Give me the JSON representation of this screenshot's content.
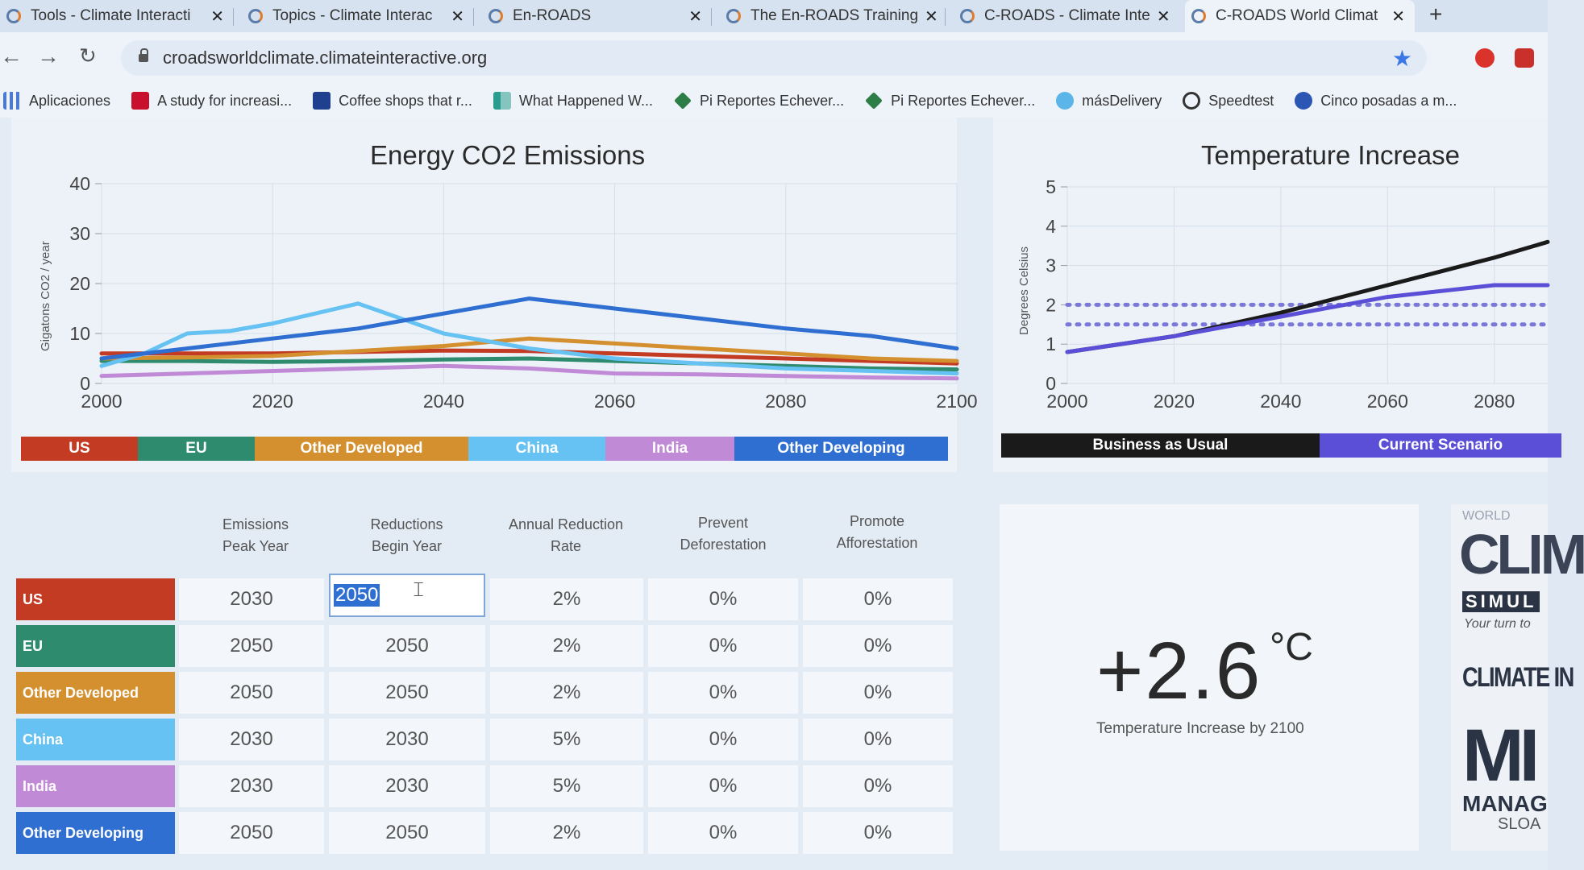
{
  "tabs": [
    {
      "label": "Tools - Climate Interacti",
      "active": false
    },
    {
      "label": "Topics - Climate Interac",
      "active": false
    },
    {
      "label": "En-ROADS",
      "active": false
    },
    {
      "label": "The En-ROADS Training",
      "active": false
    },
    {
      "label": "C-ROADS - Climate Inte",
      "active": false
    },
    {
      "label": "C-ROADS World Climat",
      "active": true
    }
  ],
  "address": {
    "url": "croadsworldclimate.climateinteractive.org"
  },
  "bookmarks": [
    {
      "label": "Aplicaciones",
      "icon": "apps-grid-icon"
    },
    {
      "label": "A study for increasi...",
      "icon": "isu-icon"
    },
    {
      "label": "Coffee shops that r...",
      "icon": "j-icon"
    },
    {
      "label": "What Happened W...",
      "icon": "chart-icon"
    },
    {
      "label": "Pi Reportes Echever...",
      "icon": "diamond-icon"
    },
    {
      "label": "Pi Reportes Echever...",
      "icon": "diamond-icon"
    },
    {
      "label": "másDelivery",
      "icon": "cloud-icon"
    },
    {
      "label": "Speedtest",
      "icon": "speedometer-icon"
    },
    {
      "label": "Cinco posadas a m...",
      "icon": "globe-icon"
    }
  ],
  "colors": {
    "us": "#c23b22",
    "eu": "#2e8b6e",
    "other_developed": "#d4902e",
    "china": "#66c2f2",
    "india": "#c08ad6",
    "other_developing": "#2f6fd1",
    "business_as_usual": "#1a1a1a",
    "current_scenario": "#5a4fd6"
  },
  "emissions_chart": {
    "title": "Energy CO2 Emissions",
    "ylabel": "Gigatons CO2 / year",
    "legend": [
      "US",
      "EU",
      "Other Developed",
      "China",
      "India",
      "Other Developing"
    ]
  },
  "temperature_chart": {
    "title": "Temperature Increase",
    "ylabel": "Degrees Celsius",
    "legend": [
      "Business as Usual",
      "Current Scenario"
    ]
  },
  "chart_data": [
    {
      "type": "line",
      "title": "Energy CO2 Emissions",
      "ylabel": "Gigatons CO2 / year",
      "xlabel": "",
      "xlim": [
        2000,
        2100
      ],
      "ylim": [
        0,
        40
      ],
      "xticks": [
        2000,
        2020,
        2040,
        2060,
        2080,
        2100
      ],
      "yticks": [
        0,
        10,
        20,
        30,
        40
      ],
      "grid": true,
      "legend": "bottom",
      "series": [
        {
          "name": "US",
          "color": "#c23b22",
          "x": [
            2000,
            2010,
            2020,
            2030,
            2040,
            2050,
            2060,
            2070,
            2080,
            2090,
            2100
          ],
          "y": [
            6,
            6,
            6,
            6.3,
            6.6,
            6.5,
            6,
            5.5,
            5,
            4.5,
            4
          ]
        },
        {
          "name": "EU",
          "color": "#2e8b6e",
          "x": [
            2000,
            2010,
            2020,
            2030,
            2040,
            2050,
            2060,
            2070,
            2080,
            2090,
            2100
          ],
          "y": [
            4.5,
            4.5,
            4.3,
            4.5,
            4.8,
            5,
            4.5,
            4,
            3.5,
            3,
            2.8
          ]
        },
        {
          "name": "Other Developed",
          "color": "#d4902e",
          "x": [
            2000,
            2010,
            2020,
            2030,
            2040,
            2050,
            2060,
            2070,
            2080,
            2090,
            2100
          ],
          "y": [
            5,
            5.2,
            5.5,
            6.5,
            7.5,
            9,
            8,
            7,
            6,
            5,
            4.5
          ]
        },
        {
          "name": "China",
          "color": "#66c2f2",
          "x": [
            2000,
            2005,
            2010,
            2015,
            2020,
            2030,
            2035,
            2040,
            2050,
            2060,
            2070,
            2080,
            2090,
            2100
          ],
          "y": [
            3.5,
            6,
            10,
            10.5,
            12,
            16,
            13,
            10,
            7,
            5,
            4,
            3,
            2.5,
            2
          ]
        },
        {
          "name": "India",
          "color": "#c08ad6",
          "x": [
            2000,
            2010,
            2020,
            2030,
            2040,
            2050,
            2060,
            2070,
            2080,
            2090,
            2100
          ],
          "y": [
            1.5,
            2,
            2.5,
            3,
            3.5,
            3,
            2,
            1.8,
            1.5,
            1.2,
            1
          ]
        },
        {
          "name": "Other Developing",
          "color": "#2f6fd1",
          "x": [
            2000,
            2010,
            2020,
            2030,
            2040,
            2050,
            2060,
            2070,
            2080,
            2090,
            2100
          ],
          "y": [
            5,
            7,
            9,
            11,
            14,
            17,
            15,
            13,
            11,
            9.5,
            7
          ]
        }
      ]
    },
    {
      "type": "line",
      "title": "Temperature Increase",
      "ylabel": "Degrees Celsius",
      "xlabel": "",
      "xlim": [
        2000,
        2090
      ],
      "ylim": [
        0,
        5
      ],
      "xticks": [
        2000,
        2020,
        2040,
        2060,
        2080
      ],
      "yticks": [
        0,
        1,
        2,
        3,
        4,
        5
      ],
      "grid": true,
      "legend": "bottom",
      "reference_lines": [
        2,
        1.5
      ],
      "series": [
        {
          "name": "Business as Usual",
          "color": "#1a1a1a",
          "x": [
            2000,
            2020,
            2040,
            2060,
            2080,
            2090
          ],
          "y": [
            0.8,
            1.2,
            1.8,
            2.5,
            3.2,
            3.6
          ]
        },
        {
          "name": "Current Scenario",
          "color": "#5a4fd6",
          "x": [
            2000,
            2020,
            2040,
            2060,
            2080,
            2090
          ],
          "y": [
            0.8,
            1.2,
            1.7,
            2.2,
            2.5,
            2.5
          ]
        }
      ]
    }
  ],
  "table": {
    "headers": [
      [
        "Emissions",
        "Peak Year"
      ],
      [
        "Reductions",
        "Begin Year"
      ],
      [
        "Annual Reduction",
        "Rate"
      ],
      [
        "Prevent",
        "Deforestation"
      ],
      [
        "Promote",
        "Afforestation"
      ]
    ],
    "rows": [
      {
        "label": "US",
        "color": "#c23b22",
        "values": [
          "2030",
          "2050",
          "2%",
          "0%",
          "0%"
        ],
        "editing_col": 1
      },
      {
        "label": "EU",
        "color": "#2e8b6e",
        "values": [
          "2050",
          "2050",
          "2%",
          "0%",
          "0%"
        ]
      },
      {
        "label": "Other Developed",
        "color": "#d4902e",
        "values": [
          "2050",
          "2050",
          "2%",
          "0%",
          "0%"
        ]
      },
      {
        "label": "China",
        "color": "#66c2f2",
        "values": [
          "2030",
          "2030",
          "5%",
          "0%",
          "0%"
        ]
      },
      {
        "label": "India",
        "color": "#c08ad6",
        "values": [
          "2030",
          "2030",
          "5%",
          "0%",
          "0%"
        ]
      },
      {
        "label": "Other Developing",
        "color": "#2f6fd1",
        "values": [
          "2050",
          "2050",
          "2%",
          "0%",
          "0%"
        ]
      }
    ]
  },
  "temperature_result": {
    "value": "+2.6",
    "unit": "°C",
    "label": "Temperature Increase by 2100"
  },
  "logos": {
    "world_climate": [
      "WORLD",
      "CLIM",
      "SIMUL",
      "Your turn to"
    ],
    "climate_interactive": "CLIMATE IN",
    "mit": [
      "MI",
      "MANAG",
      "SLOA"
    ]
  }
}
